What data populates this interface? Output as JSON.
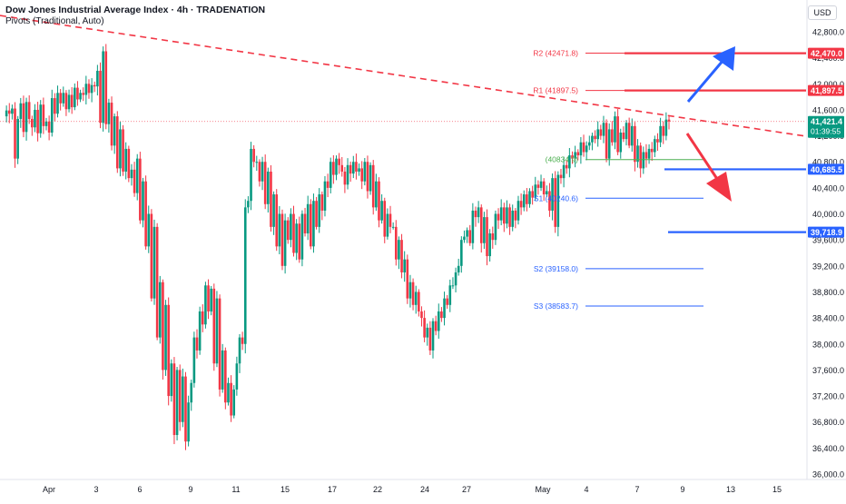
{
  "header": {
    "title": "Dow Jones Industrial Average Index · 4h · TRADENATION",
    "subtitle": "Pivots (Traditional, Auto)",
    "currency": "USD"
  },
  "colors": {
    "up": "#089981",
    "down": "#f23645",
    "red_line": "#f23645",
    "blue_line": "#2962ff",
    "pivot_label_red": "#f23645",
    "pivot_label_blue": "#2962ff",
    "pivot_p": "#4caf50"
  },
  "chart_data": {
    "type": "candlestick",
    "instrument": "Dow Jones Industrial Average Index",
    "timeframe": "4h",
    "ylim": [
      36000,
      43100
    ],
    "y_ticks": [
      36000,
      36400,
      36800,
      37200,
      37600,
      38000,
      38400,
      38800,
      39200,
      39600,
      40000,
      40400,
      40800,
      41200,
      41600,
      42000,
      42400,
      42800
    ],
    "y_tick_labels": [
      "36,000.0",
      "36,400.0",
      "36,800.0",
      "37,200.0",
      "37,600.0",
      "38,000.0",
      "38,400.0",
      "38,800.0",
      "39,200.0",
      "39,600.0",
      "40,000.0",
      "40,400.0",
      "40,800.0",
      "41,200.0",
      "41,600.0",
      "42,000.0",
      "42,400.0",
      "42,800.0"
    ],
    "x_tick_labels": [
      "Apr",
      "3",
      "6",
      "9",
      "11",
      "15",
      "17",
      "22",
      "24",
      "27",
      "May",
      "4",
      "7",
      "9",
      "13",
      "15"
    ],
    "pivots": [
      {
        "name": "R2",
        "value": 42471.8,
        "label": "R2 (42471.8)"
      },
      {
        "name": "R1",
        "value": 41897.5,
        "label": "R1 (41897.5)"
      },
      {
        "name": "P",
        "value": 40834.9,
        "label": "(40834.9)"
      },
      {
        "name": "S1",
        "value": 40240.6,
        "label": "S1 (40240.6)"
      },
      {
        "name": "S2",
        "value": 39158.0,
        "label": "S2 (39158.0)"
      },
      {
        "name": "S3",
        "value": 38583.7,
        "label": "S3 (38583.7)"
      }
    ],
    "levels": [
      {
        "value": 42470.0,
        "label": "42,470.0",
        "color": "#f23645"
      },
      {
        "value": 41897.5,
        "label": "41,897.5",
        "color": "#f23645"
      },
      {
        "value": 40685.5,
        "label": "40,685.5",
        "color": "#2962ff"
      },
      {
        "value": 39718.9,
        "label": "39,718.9",
        "color": "#2962ff"
      }
    ],
    "last_price": {
      "value": 41421.4,
      "label": "41,421.4",
      "countdown": "01:39:55"
    },
    "trendline": {
      "from": [
        0,
        43050
      ],
      "to": [
        200,
        41200
      ]
    },
    "candle_values": [
      41500,
      41590,
      41540,
      41620,
      40850,
      41460,
      41700,
      41260,
      41720,
      41460,
      41330,
      41600,
      41240,
      41680,
      41350,
      41420,
      41250,
      41780,
      41540,
      41860,
      41700,
      41860,
      41610,
      41830,
      41640,
      41940,
      41760,
      41860,
      41830,
      42000,
      41860,
      41980,
      41960,
      42200,
      41400,
      42500,
      41380,
      41710,
      41050,
      41500,
      40700,
      41300,
      40650,
      41000,
      40550,
      40680,
      40320,
      40850,
      39900,
      40500,
      39500,
      40000,
      38700,
      39800,
      38100,
      38950,
      37600,
      38600,
      37200,
      37700,
      36600,
      37600,
      36800,
      37500,
      36500,
      37100,
      37400,
      38100,
      37900,
      38500,
      38300,
      38900,
      38500,
      38850,
      37700,
      38700,
      37300,
      37900,
      37100,
      37400,
      36900,
      37300,
      37700,
      38100,
      38000,
      40100,
      40200,
      41000,
      40800,
      40800,
      40500,
      40800,
      40150,
      40650,
      39800,
      40300,
      39500,
      40000,
      39200,
      39900,
      39600,
      40000,
      39400,
      39850,
      39300,
      40000,
      39700,
      40150,
      39500,
      40200,
      39800,
      40300,
      40050,
      40500,
      40400,
      40800,
      40600,
      40850,
      40750,
      40650,
      40450,
      40750,
      40620,
      40800,
      40650,
      40700,
      40500,
      40800,
      40350,
      40750,
      40100,
      40500,
      39900,
      40200,
      39650,
      40000,
      39800,
      39800,
      39300,
      39600,
      39100,
      39300,
      38700,
      38950,
      38600,
      38800,
      38500,
      38400,
      38100,
      38250,
      37900,
      38350,
      38200,
      38500,
      38400,
      38700,
      38600,
      38900,
      38900,
      39100,
      39200,
      39600,
      39650,
      39750,
      39550,
      40050,
      39950,
      40100,
      39550,
      39950,
      39350,
      39700,
      39600,
      40000,
      39900,
      40100,
      39850,
      40100,
      39800,
      40050,
      39900,
      40200,
      40100,
      40300,
      40150,
      40350,
      40250,
      40450,
      40400,
      40500,
      40300,
      40350,
      40050,
      40550,
      39800,
      40600,
      40550,
      40750,
      40700,
      40900,
      40850,
      40950,
      40900,
      41100,
      40950,
      41050,
      41100,
      41200,
      41150,
      41300,
      41200,
      41400,
      40850,
      41300,
      41100,
      41500,
      40950,
      41250,
      41150,
      41400,
      41050,
      41350,
      40800,
      41050,
      40700,
      40950,
      40850,
      41000,
      40950,
      41150,
      41100,
      41350,
      41200,
      41450,
      41421.4
    ],
    "note_markers": "two arrows: blue up toward R2, red down toward S1"
  }
}
